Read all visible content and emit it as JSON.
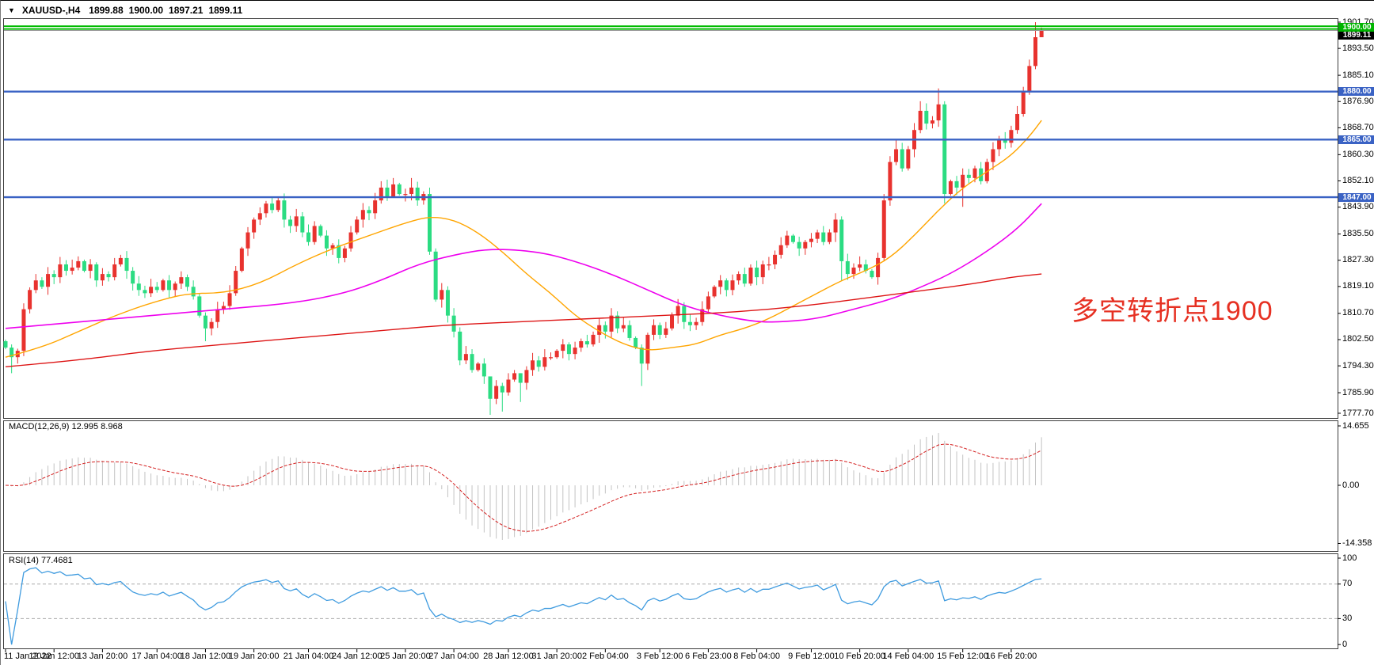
{
  "titlebar": {
    "dropdown_icon": "▼",
    "symbol": "XAUUSD-,H4",
    "open": "1899.88",
    "high": "1900.00",
    "low": "1897.21",
    "close": "1899.11"
  },
  "annotation": {
    "text": "多空转折点1900"
  },
  "colors": {
    "up_candle": "#e8322e",
    "down_candle": "#2bdc82",
    "ma_fast": "#ffa500",
    "ma_mid": "#ee00ee",
    "ma_slow": "#dd1414",
    "hline_blue": "#3a62c4",
    "hline_green": "#00bb00",
    "current_price_line": "#9a9a9a",
    "macd_hist": "#c3c3c3",
    "macd_signal": "#d42020",
    "rsi_line": "#3f9bdf",
    "rsi_levels": "#aaaaaa",
    "badge_green_bg": "#00b400",
    "badge_blue_bg": "#3a62c4",
    "badge_black_bg": "#000000",
    "annotation_red": "#e63022"
  },
  "chart_data": [
    {
      "id": "price",
      "type": "candlestick",
      "symbol": "XAUUSD-",
      "timeframe": "H4",
      "ylim": [
        1777.7,
        1901.7
      ],
      "axis_ticks": [
        "1901.70",
        "1893.50",
        "1885.10",
        "1876.90",
        "1868.70",
        "1860.30",
        "1852.10",
        "1843.90",
        "1835.50",
        "1827.30",
        "1819.10",
        "1810.70",
        "1802.50",
        "1794.30",
        "1785.90",
        "1777.70"
      ],
      "open_first": 1802,
      "closes": [
        1800,
        1797,
        1799,
        1812,
        1818,
        1821,
        1819,
        1823,
        1822,
        1826,
        1824,
        1825,
        1827,
        1824,
        1826,
        1821,
        1823,
        1822,
        1826,
        1828,
        1824,
        1820,
        1818,
        1817,
        1819,
        1818,
        1821,
        1818,
        1820,
        1822,
        1819,
        1816,
        1810,
        1806,
        1808,
        1812,
        1813,
        1817,
        1824,
        1831,
        1836,
        1840,
        1842,
        1845,
        1843,
        1846,
        1840,
        1838,
        1841,
        1836,
        1833,
        1838,
        1835,
        1831,
        1832,
        1828,
        1831,
        1836,
        1840,
        1843,
        1842,
        1846,
        1850,
        1847,
        1851,
        1848,
        1848,
        1850,
        1846,
        1848,
        1830,
        1815,
        1818,
        1810,
        1805,
        1796,
        1798,
        1793,
        1795,
        1791,
        1784,
        1788,
        1786,
        1790,
        1792,
        1789,
        1793,
        1796,
        1794,
        1797,
        1797,
        1799,
        1801,
        1798,
        1800,
        1802,
        1801,
        1804,
        1807,
        1805,
        1810,
        1806,
        1807,
        1803,
        1800,
        1795,
        1804,
        1807,
        1804,
        1806,
        1810,
        1813,
        1808,
        1807,
        1808,
        1812,
        1816,
        1819,
        1821,
        1818,
        1821,
        1823,
        1820,
        1825,
        1822,
        1826,
        1826,
        1829,
        1832,
        1835,
        1833,
        1831,
        1833,
        1834,
        1836,
        1833,
        1836,
        1840,
        1827,
        1823,
        1825,
        1826,
        1824,
        1822,
        1828,
        1846,
        1858,
        1862,
        1856,
        1862,
        1868,
        1874,
        1870,
        1871,
        1876,
        1848,
        1852,
        1850,
        1854,
        1853,
        1856,
        1852,
        1858,
        1862,
        1865,
        1864,
        1868,
        1873,
        1880,
        1888,
        1897,
        1899.1
      ],
      "wick_overrides": {
        "1": [
          1801,
          1792
        ],
        "33": [
          1811,
          1802
        ],
        "62": [
          1852,
          1845
        ],
        "64": [
          1853,
          1847
        ],
        "67": [
          1853,
          1846
        ],
        "80": [
          1790,
          1779
        ],
        "82": [
          1789,
          1780
        ],
        "85": [
          1792,
          1783
        ],
        "105": [
          1801,
          1788
        ],
        "137": [
          1842,
          1833
        ],
        "138": [
          1841,
          1821
        ],
        "145": [
          1848,
          1827
        ],
        "147": [
          1865,
          1857
        ],
        "151": [
          1877,
          1867
        ],
        "154": [
          1881,
          1869
        ],
        "155": [
          1877,
          1845
        ],
        "158": [
          1856,
          1844
        ],
        "169": [
          1890,
          1879
        ],
        "170": [
          1901.7,
          1887
        ],
        "171": [
          1900.0,
          1897.2
        ]
      },
      "hlines": [
        {
          "price": 1900.0,
          "label": "1900.00",
          "color": "green",
          "style": "double"
        },
        {
          "price": 1880.0,
          "label": "1880.00",
          "color": "blue",
          "style": "solid"
        },
        {
          "price": 1865.0,
          "label": "1865.00",
          "color": "blue",
          "style": "solid"
        },
        {
          "price": 1847.0,
          "label": "1847.00",
          "color": "blue",
          "style": "solid"
        }
      ],
      "current_price": 1899.11,
      "current_price_label": "1899.11",
      "ma_lines": [
        {
          "name": "ma-fast-orange",
          "color_key": "ma_fast",
          "width": 1.4,
          "points": [
            [
              0,
              1797
            ],
            [
              6,
              1800
            ],
            [
              12,
              1805
            ],
            [
              18,
              1810
            ],
            [
              24,
              1814
            ],
            [
              30,
              1817
            ],
            [
              36,
              1817
            ],
            [
              42,
              1820
            ],
            [
              48,
              1826
            ],
            [
              54,
              1831
            ],
            [
              60,
              1835
            ],
            [
              66,
              1839
            ],
            [
              70,
              1841
            ],
            [
              74,
              1840
            ],
            [
              78,
              1836
            ],
            [
              82,
              1830
            ],
            [
              86,
              1823
            ],
            [
              90,
              1817
            ],
            [
              94,
              1810
            ],
            [
              98,
              1805
            ],
            [
              102,
              1801
            ],
            [
              106,
              1799
            ],
            [
              110,
              1800
            ],
            [
              114,
              1801
            ],
            [
              118,
              1804
            ],
            [
              122,
              1806
            ],
            [
              126,
              1809
            ],
            [
              130,
              1813
            ],
            [
              134,
              1817
            ],
            [
              138,
              1821
            ],
            [
              142,
              1824
            ],
            [
              146,
              1828
            ],
            [
              150,
              1835
            ],
            [
              154,
              1843
            ],
            [
              158,
              1850
            ],
            [
              162,
              1855
            ],
            [
              166,
              1860
            ],
            [
              169,
              1866
            ],
            [
              171,
              1871
            ]
          ]
        },
        {
          "name": "ma-mid-magenta",
          "color_key": "ma_mid",
          "width": 1.6,
          "points": [
            [
              0,
              1806
            ],
            [
              12,
              1808
            ],
            [
              24,
              1810
            ],
            [
              36,
              1812
            ],
            [
              48,
              1814
            ],
            [
              56,
              1817
            ],
            [
              62,
              1821
            ],
            [
              68,
              1826
            ],
            [
              74,
              1829
            ],
            [
              80,
              1831
            ],
            [
              88,
              1830
            ],
            [
              94,
              1827
            ],
            [
              100,
              1823
            ],
            [
              106,
              1818
            ],
            [
              112,
              1813
            ],
            [
              118,
              1810
            ],
            [
              124,
              1808
            ],
            [
              128,
              1808
            ],
            [
              134,
              1809
            ],
            [
              140,
              1812
            ],
            [
              146,
              1815
            ],
            [
              150,
              1818
            ],
            [
              156,
              1823
            ],
            [
              162,
              1830
            ],
            [
              167,
              1837
            ],
            [
              171,
              1845
            ]
          ]
        },
        {
          "name": "ma-slow-red",
          "color_key": "ma_slow",
          "width": 1.4,
          "points": [
            [
              0,
              1794
            ],
            [
              12,
              1796
            ],
            [
              24,
              1799
            ],
            [
              36,
              1801
            ],
            [
              48,
              1803
            ],
            [
              60,
              1805
            ],
            [
              72,
              1807
            ],
            [
              84,
              1808
            ],
            [
              96,
              1809
            ],
            [
              108,
              1810
            ],
            [
              120,
              1811
            ],
            [
              132,
              1813
            ],
            [
              144,
              1816
            ],
            [
              152,
              1818
            ],
            [
              160,
              1820
            ],
            [
              166,
              1822
            ],
            [
              171,
              1823
            ]
          ]
        }
      ]
    },
    {
      "id": "macd",
      "type": "macd-histogram",
      "label": "MACD(12,26,9) 12.995 8.968",
      "params": [
        12,
        26,
        9
      ],
      "current_values": [
        12.995,
        8.968
      ],
      "axis_ticks": [
        "14.655",
        "0.00",
        "-14.358"
      ],
      "ylim": [
        -14.358,
        14.655
      ]
    },
    {
      "id": "rsi",
      "type": "line",
      "label": "RSI(14) 77.4681",
      "period": 14,
      "current_value": 77.4681,
      "axis_ticks": [
        "100",
        "70",
        "30",
        "0"
      ],
      "levels": [
        70,
        30
      ],
      "ylim": [
        0,
        100
      ]
    }
  ],
  "time_axis": {
    "labels": [
      "11 Jan 2022",
      "12 Jan 12:00",
      "13 Jan 20:00",
      "17 Jan 04:00",
      "18 Jan 12:00",
      "19 Jan 20:00",
      "21 Jan 04:00",
      "24 Jan 12:00",
      "25 Jan 20:00",
      "27 Jan 04:00",
      "28 Jan 12:00",
      "31 Jan 20:00",
      "2 Feb 04:00",
      "3 Feb 12:00",
      "6 Feb 23:00",
      "8 Feb 04:00",
      "9 Feb 12:00",
      "10 Feb 20:00",
      "14 Feb 04:00",
      "15 Feb 12:00",
      "16 Feb 20:00"
    ],
    "bar_indices": [
      0,
      8,
      16,
      25,
      33,
      41,
      50,
      58,
      66,
      74,
      83,
      91,
      99,
      108,
      116,
      124,
      133,
      141,
      149,
      158,
      166
    ]
  }
}
